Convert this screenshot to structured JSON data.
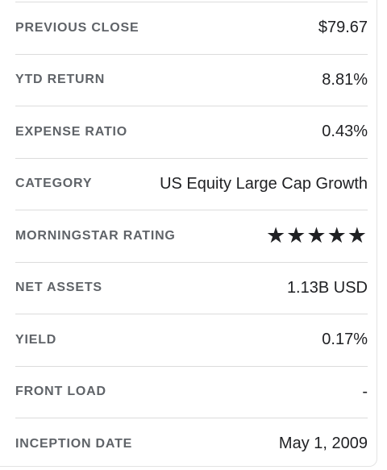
{
  "stats": {
    "rows": [
      {
        "label": "PREVIOUS CLOSE",
        "value": "$79.67"
      },
      {
        "label": "YTD RETURN",
        "value": "8.81%"
      },
      {
        "label": "EXPENSE RATIO",
        "value": "0.43%"
      },
      {
        "label": "CATEGORY",
        "value": "US Equity Large Cap Growth"
      },
      {
        "label": "MORNINGSTAR RATING",
        "value": "★★★★★"
      },
      {
        "label": "NET ASSETS",
        "value": "1.13B USD"
      },
      {
        "label": "YIELD",
        "value": "0.17%"
      },
      {
        "label": "FRONT LOAD",
        "value": "-"
      },
      {
        "label": "INCEPTION DATE",
        "value": "May 1, 2009"
      }
    ],
    "morningstar_rating_stars": 5
  },
  "colors": {
    "label": "#5f6368",
    "value": "#202124",
    "divider": "#dcdcdc"
  }
}
